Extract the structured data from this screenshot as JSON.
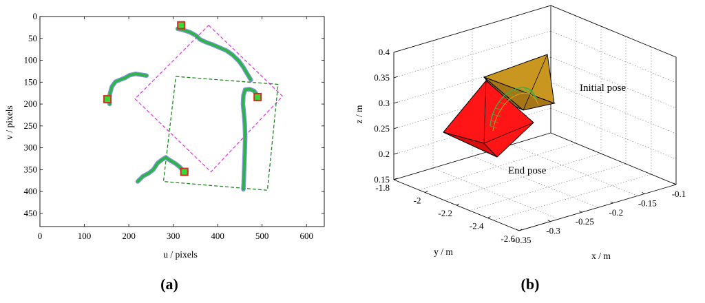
{
  "chart_data": [
    {
      "type": "scatter",
      "panel_label_open": "(",
      "panel_label_letter": "a",
      "panel_label_close": ")",
      "xlabel": "u / pixels",
      "ylabel": "v / pixels",
      "xlim": [
        0,
        640
      ],
      "ylim": [
        0,
        480
      ],
      "y_inverted": true,
      "xticks": [
        0,
        100,
        200,
        300,
        400,
        500,
        600
      ],
      "yticks": [
        0,
        50,
        100,
        150,
        200,
        250,
        300,
        350,
        400,
        450
      ],
      "tracks": [
        {
          "color": "#2db34a",
          "points": [
            [
              310,
              28
            ],
            [
              320,
              30
            ],
            [
              338,
              36
            ],
            [
              352,
              44
            ],
            [
              360,
              52
            ],
            [
              372,
              58
            ],
            [
              388,
              64
            ],
            [
              402,
              70
            ],
            [
              420,
              78
            ],
            [
              434,
              88
            ],
            [
              448,
              102
            ],
            [
              458,
              116
            ],
            [
              466,
              130
            ],
            [
              475,
              145
            ]
          ]
        },
        {
          "color": "#2db34a",
          "points": [
            [
              240,
              135
            ],
            [
              228,
              133
            ],
            [
              215,
              131
            ],
            [
              202,
              134
            ],
            [
              192,
              140
            ],
            [
              182,
              144
            ],
            [
              170,
              149
            ],
            [
              162,
              160
            ],
            [
              158,
              175
            ],
            [
              155,
              190
            ],
            [
              157,
              200
            ]
          ]
        },
        {
          "color": "#2db34a",
          "points": [
            [
              488,
              178
            ],
            [
              482,
              170
            ],
            [
              472,
              166
            ],
            [
              462,
              167
            ],
            [
              458,
              180
            ],
            [
              457,
              200
            ],
            [
              459,
              220
            ],
            [
              461,
              245
            ],
            [
              462,
              275
            ],
            [
              461,
              310
            ],
            [
              460,
              340
            ],
            [
              459,
              370
            ],
            [
              458,
              395
            ]
          ]
        },
        {
          "color": "#2db34a",
          "points": [
            [
              220,
              377
            ],
            [
              232,
              365
            ],
            [
              245,
              358
            ],
            [
              255,
              350
            ],
            [
              265,
              335
            ],
            [
              275,
              327
            ],
            [
              283,
              322
            ],
            [
              295,
              330
            ],
            [
              305,
              336
            ],
            [
              315,
              344
            ],
            [
              322,
              352
            ],
            [
              330,
              356
            ]
          ]
        }
      ],
      "feature_points": [
        {
          "u": 318,
          "v": 20
        },
        {
          "u": 152,
          "v": 189
        },
        {
          "u": 490,
          "v": 184
        },
        {
          "u": 325,
          "v": 355
        }
      ],
      "marker_edge_color": "#d62b1f",
      "marker_fill_color": "#39d739",
      "quadrilaterals": [
        {
          "color": "#e13fe3",
          "vertices": [
            [
              380,
              20
            ],
            [
              546,
              182
            ],
            [
              385,
              355
            ],
            [
              214,
              188
            ]
          ]
        },
        {
          "color": "#1e8a1e",
          "vertices": [
            [
              306,
              137
            ],
            [
              536,
              155
            ],
            [
              512,
              397
            ],
            [
              278,
              377
            ]
          ]
        }
      ]
    },
    {
      "type": "3d",
      "panel_label_open": "(",
      "panel_label_letter": "b",
      "panel_label_close": ")",
      "xlabel": "x / m",
      "ylabel": "y / m",
      "zlabel": "z / m",
      "xticks": [
        "-0.35",
        "-0.3",
        "-0.25",
        "-0.2",
        "-0.15",
        "-0.1"
      ],
      "yticks": [
        "-1.8",
        "-2",
        "-2.2",
        "-2.4",
        "-2.6"
      ],
      "zticks": [
        "0.15",
        "0.2",
        "0.25",
        "0.3",
        "0.35",
        "0.4"
      ],
      "xlim": [
        -0.35,
        -0.1
      ],
      "ylim": [
        -2.6,
        -1.8
      ],
      "zlim": [
        0.15,
        0.4
      ],
      "grid": true,
      "annotations": [
        "Initial pose",
        "End pose"
      ],
      "colors": {
        "initial_pose": "#b37f1a",
        "end_pose": "#f01010",
        "trajectory": "#2fa52f"
      }
    }
  ]
}
